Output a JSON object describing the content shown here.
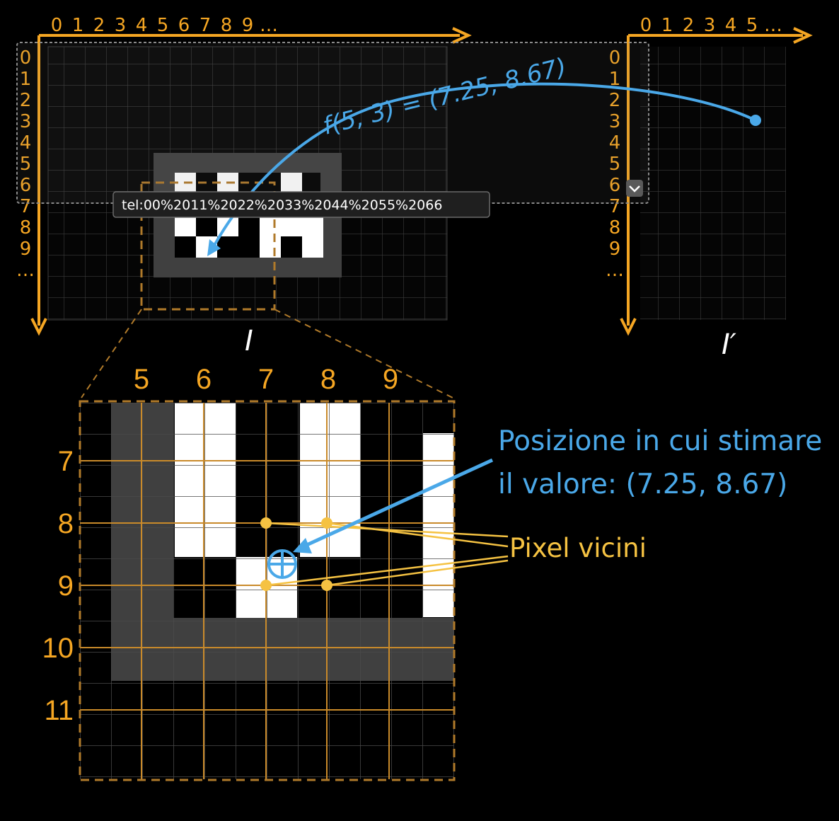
{
  "colors": {
    "axis": "#f5a623",
    "accent_blue": "#4aa8e8",
    "grid": "#3b3b3b",
    "border_gray": "#404040",
    "bg": "#000000",
    "pixel_white": "#ffffff"
  },
  "image_I": {
    "label": "I",
    "x_ticks": [
      "0",
      "1",
      "2",
      "3",
      "4",
      "5",
      "6",
      "7",
      "8",
      "9",
      "…"
    ],
    "y_ticks": [
      "0",
      "1",
      "2",
      "3",
      "4",
      "5",
      "6",
      "7",
      "8",
      "9",
      "…"
    ]
  },
  "image_I_prime": {
    "label": "I′",
    "x_ticks": [
      "0",
      "1",
      "2",
      "3",
      "4",
      "5",
      "…"
    ],
    "y_ticks": [
      "0",
      "1",
      "2",
      "3",
      "4",
      "5",
      "6",
      "7",
      "8",
      "9",
      "…"
    ]
  },
  "mapping_formula": "f(5, 3) = (7.25, 8.67)",
  "tooltip_text": "tel:00%2011%2022%2033%2044%2055%2066",
  "zoom": {
    "x_ticks": [
      "5",
      "6",
      "7",
      "8",
      "9"
    ],
    "y_ticks": [
      "7",
      "8",
      "9",
      "10",
      "11"
    ],
    "target_label_line1": "Posizione in cui stimare",
    "target_label_line2": "il valore: (7.25, 8.67)",
    "neighbors_label": "Pixel vicini"
  }
}
